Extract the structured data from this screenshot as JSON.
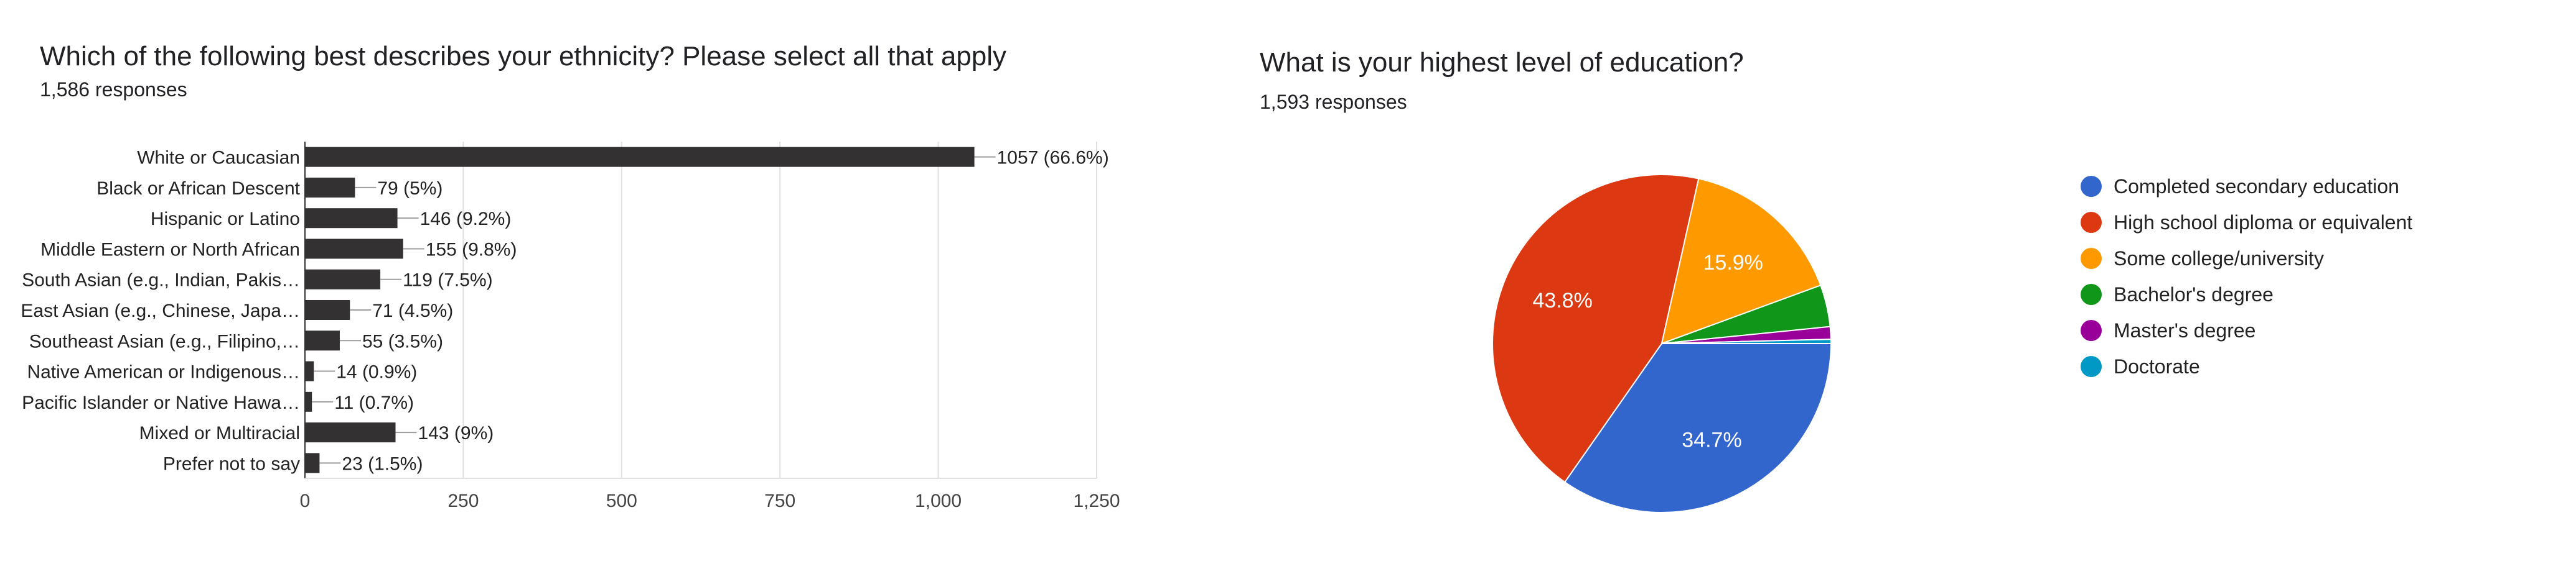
{
  "left": {
    "title": "Which of the following best describes your ethnicity? Please select all that apply",
    "responses": "1,586 responses"
  },
  "right": {
    "title": "What is your highest level of education?",
    "responses": "1,593 responses"
  },
  "chart_data": [
    {
      "type": "bar",
      "orientation": "horizontal",
      "title": "Which of the following best describes your ethnicity? Please select all that apply",
      "subtitle": "1,586 responses",
      "categories": [
        "White or Caucasian",
        "Black or African Descent",
        "Hispanic or Latino",
        "Middle Eastern or North African",
        "South Asian (e.g., Indian, Pakis…",
        "East Asian (e.g., Chinese, Japa…",
        "Southeast Asian (e.g., Filipino,…",
        "Native American or Indigenous…",
        "Pacific Islander or Native Hawa…",
        "Mixed or Multiracial",
        "Prefer not to say"
      ],
      "values": [
        1057,
        79,
        146,
        155,
        119,
        71,
        55,
        14,
        11,
        143,
        23
      ],
      "value_labels": [
        "1057 (66.6%)",
        "79 (5%)",
        "146 (9.2%)",
        "155 (9.8%)",
        "119 (7.5%)",
        "71 (4.5%)",
        "55 (3.5%)",
        "14 (0.9%)",
        "11 (0.7%)",
        "143 (9%)",
        "23 (1.5%)"
      ],
      "xlim": [
        0,
        1250
      ],
      "xticks": [
        "0",
        "250",
        "500",
        "750",
        "1,000",
        "1,250"
      ],
      "xtick_values": [
        0,
        250,
        500,
        750,
        1000,
        1250
      ],
      "grid": true,
      "bar_color": "#333131"
    },
    {
      "type": "pie",
      "title": "What is your highest level of education?",
      "subtitle": "1,593 responses",
      "slices": [
        {
          "label": "Completed secondary education",
          "value": 34.7,
          "color": "#3366cc",
          "display": "34.7%"
        },
        {
          "label": "High school diploma or equivalent",
          "value": 43.8,
          "color": "#dc3912",
          "display": "43.8%"
        },
        {
          "label": "Some college/university",
          "value": 15.9,
          "color": "#ff9900",
          "display": "15.9%"
        },
        {
          "label": "Bachelor's degree",
          "value": 4.0,
          "color": "#109618",
          "display": ""
        },
        {
          "label": "Master's degree",
          "value": 1.2,
          "color": "#990099",
          "display": ""
        },
        {
          "label": "Doctorate",
          "value": 0.4,
          "color": "#0099c6",
          "display": ""
        }
      ],
      "legend_position": "right"
    }
  ]
}
